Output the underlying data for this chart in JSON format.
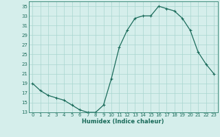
{
  "x": [
    0,
    1,
    2,
    3,
    4,
    5,
    6,
    7,
    8,
    9,
    10,
    11,
    12,
    13,
    14,
    15,
    16,
    17,
    18,
    19,
    20,
    21,
    22,
    23
  ],
  "y": [
    19,
    17.5,
    16.5,
    16,
    15.5,
    14.5,
    13.5,
    13,
    13,
    14.5,
    20,
    26.5,
    30,
    32.5,
    33,
    33,
    35,
    34.5,
    34,
    32.5,
    30,
    25.5,
    23,
    21
  ],
  "line_color": "#1a6b5a",
  "marker": "+",
  "marker_size": 3,
  "marker_lw": 0.8,
  "line_width": 0.9,
  "bg_color": "#d5eeeb",
  "grid_color": "#a8d5cf",
  "xlabel": "Humidex (Indice chaleur)",
  "ylim": [
    13,
    36
  ],
  "xlim": [
    -0.5,
    23.5
  ],
  "yticks": [
    13,
    15,
    17,
    19,
    21,
    23,
    25,
    27,
    29,
    31,
    33,
    35
  ],
  "xticks": [
    0,
    1,
    2,
    3,
    4,
    5,
    6,
    7,
    8,
    9,
    10,
    11,
    12,
    13,
    14,
    15,
    16,
    17,
    18,
    19,
    20,
    21,
    22,
    23
  ],
  "xtick_labels": [
    "0",
    "1",
    "2",
    "3",
    "4",
    "5",
    "6",
    "7",
    "8",
    "9",
    "10",
    "11",
    "12",
    "13",
    "14",
    "15",
    "16",
    "17",
    "18",
    "19",
    "20",
    "21",
    "22",
    "23"
  ],
  "ytick_labels": [
    "13",
    "15",
    "17",
    "19",
    "21",
    "23",
    "25",
    "27",
    "29",
    "31",
    "33",
    "35"
  ],
  "tick_fontsize": 5,
  "xlabel_fontsize": 6,
  "spine_color": "#3d8a7a",
  "tick_color": "#1a6b5a"
}
